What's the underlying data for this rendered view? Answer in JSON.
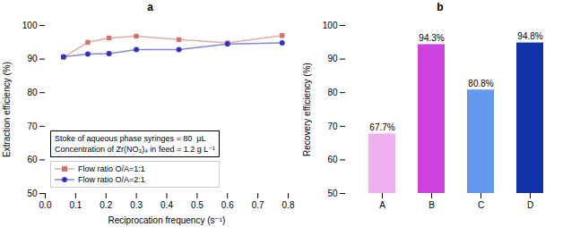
{
  "chart_data": [
    {
      "type": "line",
      "title": "a",
      "xlabel": "Reciprocation frequency (s⁻¹)",
      "ylabel": "Extraction efficiency (%)",
      "xlim": [
        0,
        0.8
      ],
      "ylim": [
        50,
        100
      ],
      "xticks": [
        {
          "value": 0,
          "label": "0.0"
        },
        0.1,
        0.2,
        0.3,
        0.4,
        0.5,
        0.6,
        0.7,
        0.8
      ],
      "yticks": [
        50,
        60,
        70,
        80,
        90,
        100
      ],
      "x": [
        0.06,
        0.14,
        0.21,
        0.3,
        0.44,
        0.6,
        0.78
      ],
      "series": [
        {
          "name": "Flow ratio O/A=1:1",
          "color": "#d47070",
          "marker": "square",
          "values": [
            90.5,
            95.0,
            96.3,
            96.8,
            95.8,
            94.8,
            97.0
          ]
        },
        {
          "name": "Flow ratio O/A=2:1",
          "color": "#3333bb",
          "marker": "circle",
          "values": [
            90.7,
            91.5,
            91.6,
            92.8,
            92.8,
            94.5,
            94.8
          ]
        }
      ],
      "annotations": [
        "Stoke of aqueous phase syringes = 80  μL",
        "Concentration of Zr(NO₃)₄ in feed = 1.2 g L⁻¹"
      ],
      "legend": "lower left"
    },
    {
      "type": "bar",
      "title": "b",
      "ylabel": "Recovery efficiency (%)",
      "categories": [
        "A",
        "B",
        "C",
        "D"
      ],
      "values": [
        67.7,
        94.3,
        80.8,
        94.8
      ],
      "value_labels": [
        "67.7%",
        "94.3%",
        "80.8%",
        "94.8%"
      ],
      "colors": [
        "#f0b0f0",
        "#cc44dd",
        "#6699ee",
        "#1133aa"
      ],
      "ylim": [
        50,
        100
      ],
      "yticks": [
        50,
        60,
        70,
        80,
        90,
        100
      ],
      "data_labels": true
    }
  ]
}
